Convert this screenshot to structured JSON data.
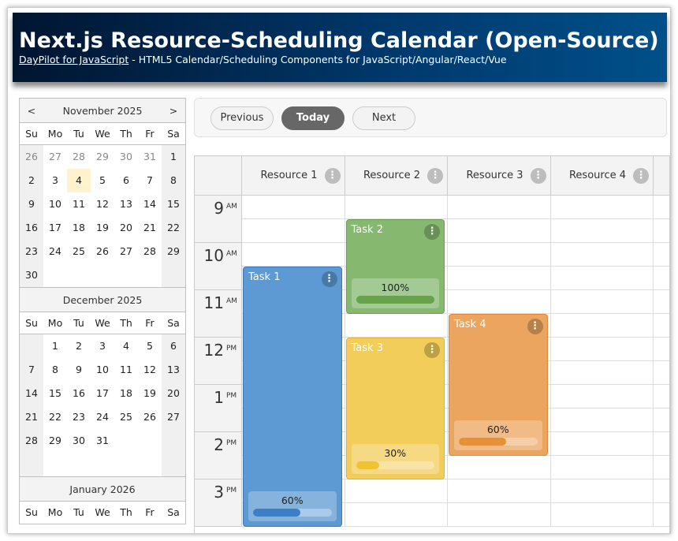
{
  "header": {
    "title": "Next.js Resource-Scheduling Calendar (Open-Source)",
    "link": "DayPilot for JavaScript",
    "subtitle": " - HTML5 Calendar/Scheduling Components for JavaScript/Angular/React/Vue"
  },
  "navigator": {
    "prev": "<",
    "next": ">",
    "dow": [
      "Su",
      "Mo",
      "Tu",
      "We",
      "Th",
      "Fr",
      "Sa"
    ],
    "today": "2025-11-04",
    "months": [
      {
        "title": "November 2025",
        "weeks": [
          [
            "26",
            "27",
            "28",
            "29",
            "30",
            "31",
            "1"
          ],
          [
            "2",
            "3",
            "4",
            "5",
            "6",
            "7",
            "8"
          ],
          [
            "9",
            "10",
            "11",
            "12",
            "13",
            "14",
            "15"
          ],
          [
            "16",
            "17",
            "18",
            "19",
            "20",
            "21",
            "22"
          ],
          [
            "23",
            "24",
            "25",
            "26",
            "27",
            "28",
            "29"
          ],
          [
            "30",
            "",
            "",
            "",
            "",
            "",
            ""
          ]
        ],
        "other_first_row": 6
      },
      {
        "title": "December 2025",
        "weeks": [
          [
            "",
            "1",
            "2",
            "3",
            "4",
            "5",
            "6"
          ],
          [
            "7",
            "8",
            "9",
            "10",
            "11",
            "12",
            "13"
          ],
          [
            "14",
            "15",
            "16",
            "17",
            "18",
            "19",
            "20"
          ],
          [
            "21",
            "22",
            "23",
            "24",
            "25",
            "26",
            "27"
          ],
          [
            "28",
            "29",
            "30",
            "31",
            "",
            "",
            ""
          ],
          [
            "",
            "",
            "",
            "",
            "",
            "",
            ""
          ]
        ]
      },
      {
        "title": "January 2026",
        "weeks": []
      }
    ]
  },
  "toolbar": {
    "previous": "Previous",
    "today": "Today",
    "next": "Next"
  },
  "calendar": {
    "resources": [
      "Resource 1",
      "Resource 2",
      "Resource 3",
      "Resource 4"
    ],
    "hours": [
      {
        "h": "9",
        "ap": "AM"
      },
      {
        "h": "10",
        "ap": "AM"
      },
      {
        "h": "11",
        "ap": "AM"
      },
      {
        "h": "12",
        "ap": "PM"
      },
      {
        "h": "1",
        "ap": "PM"
      },
      {
        "h": "2",
        "ap": "PM"
      },
      {
        "h": "3",
        "ap": "PM"
      }
    ],
    "events": [
      {
        "text": "Task 1",
        "resource": 0,
        "start": 10.5,
        "end": 16,
        "progress": 60,
        "progress_label": "60%",
        "color": "#5d9ad3",
        "border": "#3f78b8",
        "bar": "#3d7fc4"
      },
      {
        "text": "Task 2",
        "resource": 1,
        "start": 9.5,
        "end": 11.5,
        "progress": 100,
        "progress_label": "100%",
        "color": "#86b86f",
        "border": "#6a9e54",
        "bar": "#66a34a"
      },
      {
        "text": "Task 3",
        "resource": 1,
        "start": 12,
        "end": 15,
        "progress": 30,
        "progress_label": "30%",
        "color": "#f3cd5a",
        "border": "#dcb23a",
        "bar": "#f1c232"
      },
      {
        "text": "Task 4",
        "resource": 2,
        "start": 11.5,
        "end": 14.5,
        "progress": 60,
        "progress_label": "60%",
        "color": "#eba55e",
        "border": "#d8893f",
        "bar": "#e69138"
      }
    ]
  }
}
